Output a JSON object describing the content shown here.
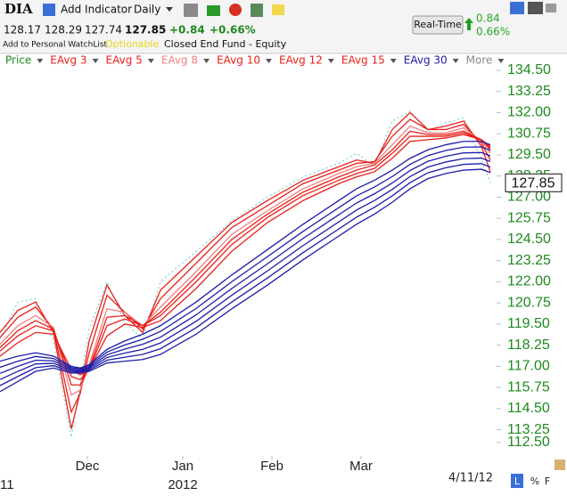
{
  "toolbar": {
    "symbol": "DIA",
    "add_indicator": "Add Indicator",
    "period": "Daily",
    "realtime_button": "Real-Time",
    "change": "0.84",
    "change_pct": "0.66%"
  },
  "quote": {
    "values": [
      "128.17",
      "128.29",
      "127.74",
      "127.85"
    ],
    "change": "+0.84",
    "change_pct": "+0.66%"
  },
  "info": {
    "watchlist": "Add to Personal WatchList",
    "optionable": "Optionable",
    "fund_type": "Closed End Fund - Equity"
  },
  "footer_buttons": [
    "L",
    "%",
    "F"
  ],
  "chart_data": {
    "type": "line",
    "more_label": "More",
    "x": [
      0,
      4,
      8,
      12,
      16,
      18,
      20,
      24,
      28,
      32,
      36,
      44,
      52,
      60,
      68,
      76,
      80,
      84,
      88,
      92,
      96,
      100,
      104,
      108,
      110
    ],
    "xlim": [
      0,
      111
    ],
    "xticks": [
      {
        "value": 19.6,
        "label": "Dec"
      },
      {
        "value": 41,
        "label": "Jan"
      },
      {
        "value": 61,
        "label": "Feb"
      },
      {
        "value": 81,
        "label": "Mar"
      }
    ],
    "year_ticks": [
      {
        "value": 0,
        "label": "11"
      },
      {
        "value": 41,
        "label": "2012"
      }
    ],
    "last_date": "4/11/12",
    "last_price": 127.85,
    "ylim": [
      111.7,
      135.5
    ],
    "yticks": [
      {
        "value": 134.5,
        "label": "134.50"
      },
      {
        "value": 133.25,
        "label": "133.25"
      },
      {
        "value": 132,
        "label": "132.00"
      },
      {
        "value": 130.75,
        "label": "130.75"
      },
      {
        "value": 129.5,
        "label": "129.50"
      },
      {
        "value": 128.25,
        "label": "128.25"
      },
      {
        "value": 127,
        "label": "127.00"
      },
      {
        "value": 125.75,
        "label": "125.75"
      },
      {
        "value": 124.5,
        "label": "124.50"
      },
      {
        "value": 123.25,
        "label": "123.25"
      },
      {
        "value": 122,
        "label": "122.00"
      },
      {
        "value": 120.75,
        "label": "120.75"
      },
      {
        "value": 119.5,
        "label": "119.50"
      },
      {
        "value": 118.25,
        "label": "118.25"
      },
      {
        "value": 117,
        "label": "117.00"
      },
      {
        "value": 115.75,
        "label": "115.75"
      },
      {
        "value": 114.5,
        "label": "114.50"
      },
      {
        "value": 113.25,
        "label": "113.25"
      },
      {
        "value": 112.5,
        "label": "112.50"
      }
    ],
    "series": [
      {
        "name": "Price",
        "color": "#7fd6d6",
        "label_color": "#1e8a1e",
        "dash": true,
        "values": [
          118.6,
          120.8,
          121.0,
          118.5,
          112.8,
          116.0,
          119.2,
          122.0,
          119.6,
          118.6,
          122.0,
          123.8,
          125.6,
          127.0,
          128.2,
          129.0,
          129.6,
          128.8,
          131.5,
          132.1,
          130.8,
          131.4,
          131.7,
          129.2,
          127.85
        ]
      },
      {
        "name": "EAvg 3",
        "color": "#e8201c",
        "values": [
          119.0,
          120.3,
          120.8,
          119.0,
          113.3,
          115.5,
          118.5,
          121.8,
          120.0,
          119.0,
          121.5,
          123.5,
          125.5,
          126.8,
          128.0,
          128.8,
          129.2,
          129.0,
          131.0,
          132.0,
          131.0,
          131.2,
          131.5,
          130.0,
          128.5
        ]
      },
      {
        "name": "EAvg 5",
        "color": "#e8201c",
        "values": [
          118.7,
          119.9,
          120.5,
          119.2,
          114.3,
          115.4,
          117.8,
          121.2,
          120.2,
          119.2,
          121.0,
          123.1,
          125.2,
          126.5,
          127.8,
          128.6,
          129.0,
          129.1,
          130.6,
          131.6,
          131.0,
          131.0,
          131.3,
          130.2,
          129.2
        ]
      },
      {
        "name": "EAvg 8",
        "color": "#f08080",
        "values": [
          118.3,
          119.4,
          120.0,
          119.3,
          115.3,
          115.6,
          117.1,
          120.4,
          120.2,
          119.4,
          120.5,
          122.6,
          124.8,
          126.2,
          127.5,
          128.4,
          128.8,
          129.0,
          130.1,
          131.2,
          130.8,
          130.8,
          131.1,
          130.3,
          129.6
        ]
      },
      {
        "name": "EAvg 10",
        "color": "#e8201c",
        "values": [
          118.1,
          119.1,
          119.7,
          119.2,
          115.9,
          115.9,
          116.9,
          119.9,
          120.0,
          119.4,
          120.2,
          122.3,
          124.5,
          126.0,
          127.3,
          128.2,
          128.6,
          128.9,
          129.8,
          130.9,
          130.7,
          130.7,
          130.9,
          130.4,
          129.8
        ]
      },
      {
        "name": "EAvg 12",
        "color": "#e8201c",
        "values": [
          117.9,
          118.8,
          119.4,
          119.1,
          116.4,
          116.2,
          116.8,
          119.4,
          119.8,
          119.4,
          120.0,
          122.0,
          124.2,
          125.8,
          127.1,
          128.0,
          128.4,
          128.7,
          129.6,
          130.6,
          130.6,
          130.6,
          130.8,
          130.4,
          129.9
        ]
      },
      {
        "name": "EAvg 15",
        "color": "#e8201c",
        "values": [
          117.6,
          118.4,
          119.0,
          118.9,
          116.8,
          116.5,
          116.8,
          118.8,
          119.5,
          119.3,
          119.7,
          121.6,
          123.8,
          125.5,
          126.8,
          127.8,
          128.2,
          128.5,
          129.3,
          130.3,
          130.4,
          130.5,
          130.7,
          130.4,
          130.0
        ]
      },
      {
        "name": "EAvg 30",
        "color": "#1c1ca8",
        "values": [
          117.3,
          117.6,
          117.8,
          117.6,
          117.0,
          116.9,
          117.1,
          118.0,
          118.5,
          118.9,
          119.4,
          120.8,
          122.4,
          123.9,
          125.4,
          126.8,
          127.5,
          128.0,
          128.6,
          129.3,
          129.8,
          130.1,
          130.3,
          130.3,
          130.1
        ]
      },
      {
        "color": "#1c1ca8",
        "values": [
          116.94,
          117.3,
          117.58,
          117.46,
          116.92,
          116.84,
          117.02,
          117.84,
          118.26,
          118.6,
          119.06,
          120.42,
          122.0,
          123.48,
          124.98,
          126.38,
          127.08,
          127.6,
          128.22,
          128.94,
          129.46,
          129.76,
          129.96,
          129.97,
          129.77
        ]
      },
      {
        "color": "#1c1ca8",
        "values": [
          116.58,
          117.0,
          117.36,
          117.32,
          116.84,
          116.78,
          116.94,
          117.68,
          118.02,
          118.3,
          118.72,
          120.04,
          121.6,
          123.06,
          124.56,
          125.96,
          126.66,
          127.2,
          127.84,
          128.58,
          129.12,
          129.42,
          129.62,
          129.64,
          129.44
        ]
      },
      {
        "color": "#1c1ca8",
        "values": [
          116.22,
          116.7,
          117.14,
          117.18,
          116.76,
          116.72,
          116.86,
          117.52,
          117.78,
          118.0,
          118.38,
          119.66,
          121.2,
          122.64,
          124.14,
          125.54,
          126.24,
          126.8,
          127.46,
          128.22,
          128.78,
          129.08,
          129.28,
          129.31,
          129.11
        ]
      },
      {
        "color": "#1c1ca8",
        "values": [
          115.86,
          116.4,
          116.92,
          117.04,
          116.68,
          116.66,
          116.78,
          117.36,
          117.54,
          117.7,
          118.04,
          119.28,
          120.8,
          122.22,
          123.72,
          125.12,
          125.82,
          126.4,
          127.08,
          127.86,
          128.44,
          128.74,
          128.94,
          128.98,
          128.78
        ]
      },
      {
        "color": "#1c1ca8",
        "values": [
          115.5,
          116.1,
          116.7,
          116.9,
          116.6,
          116.6,
          116.7,
          117.2,
          117.3,
          117.4,
          117.7,
          118.9,
          120.4,
          121.8,
          123.3,
          124.7,
          125.4,
          126.0,
          126.7,
          127.5,
          128.1,
          128.4,
          128.6,
          128.65,
          128.45
        ]
      }
    ]
  }
}
